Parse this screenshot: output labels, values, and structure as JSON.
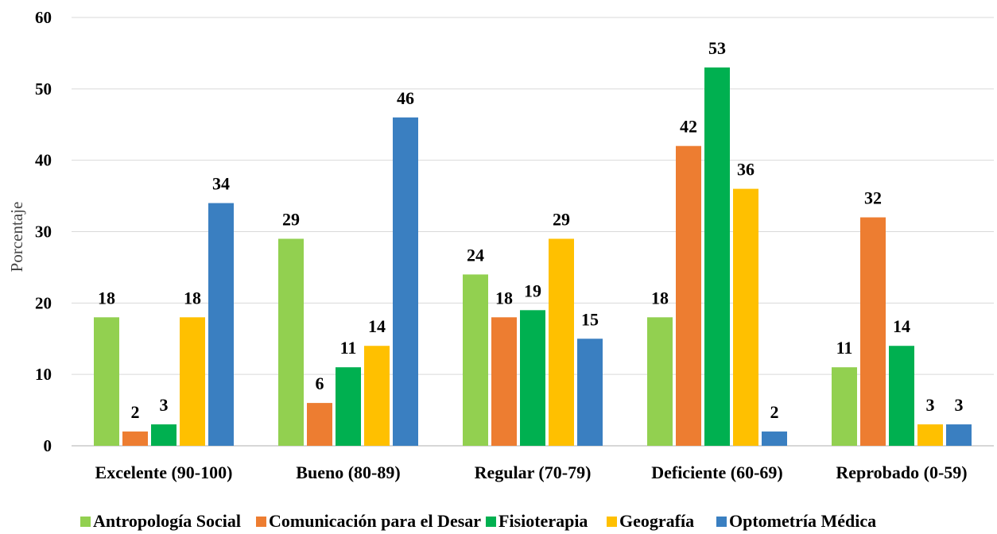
{
  "chart_data": {
    "type": "bar",
    "title": "",
    "xlabel": "",
    "ylabel": "Porcentaje",
    "ylim": [
      0,
      60
    ],
    "yticks": [
      0,
      10,
      20,
      30,
      40,
      50,
      60
    ],
    "grid": true,
    "legend_position": "bottom",
    "categories": [
      "Excelente (90-100)",
      "Bueno (80-89)",
      "Regular (70-79)",
      "Deficiente (60-69)",
      "Reprobado (0-59)"
    ],
    "series": [
      {
        "name": "Antropología Social",
        "color": "#92d050",
        "values": [
          18,
          29,
          24,
          18,
          11
        ]
      },
      {
        "name": "Comunicación para el Desar",
        "color": "#ed7d31",
        "values": [
          2,
          6,
          18,
          42,
          32
        ]
      },
      {
        "name": "Fisioterapia",
        "color": "#00b050",
        "values": [
          3,
          11,
          19,
          53,
          14
        ]
      },
      {
        "name": "Geografía",
        "color": "#ffc000",
        "values": [
          18,
          14,
          29,
          36,
          3
        ]
      },
      {
        "name": "Optometría Médica",
        "color": "#3a7fc1",
        "values": [
          34,
          46,
          15,
          2,
          3
        ]
      }
    ]
  }
}
